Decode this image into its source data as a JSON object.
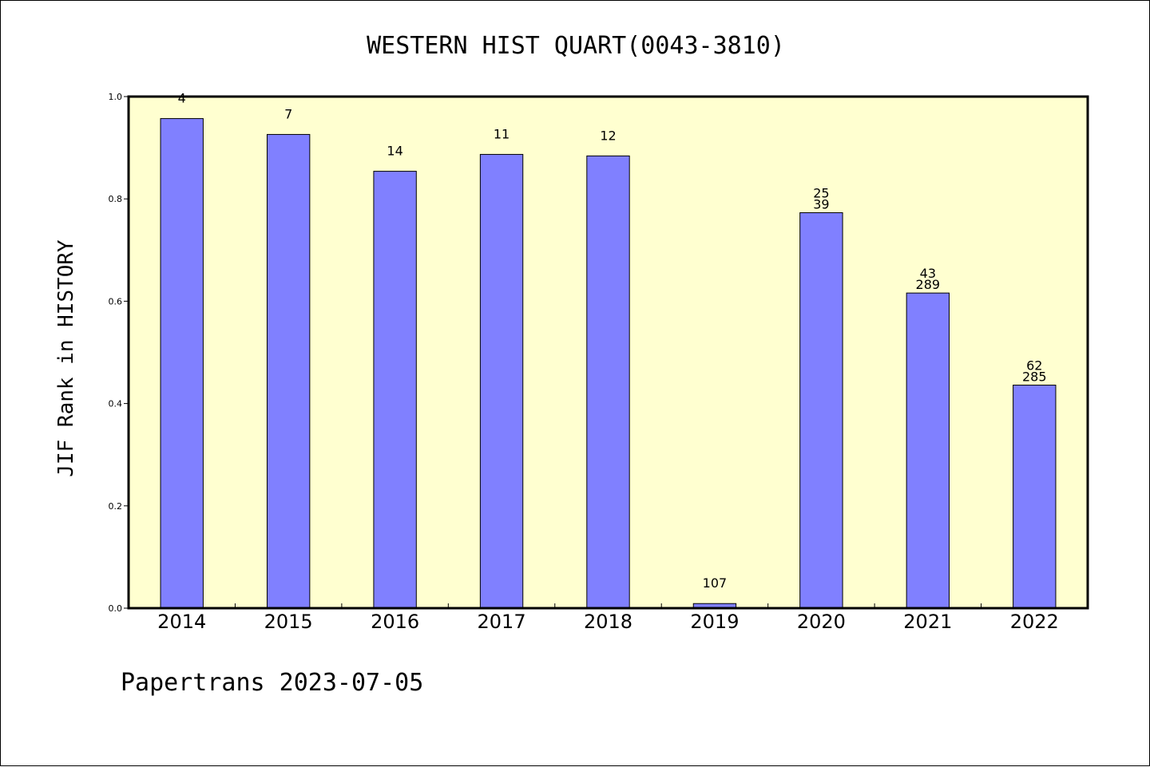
{
  "chart_data": {
    "type": "bar",
    "title": "WESTERN HIST QUART(0043-3810)",
    "ylabel": "JIF Rank in HISTORY",
    "xlabel": "",
    "ylim": [
      0,
      1.0
    ],
    "yticks": [
      "0.0",
      "0.2",
      "0.4",
      "0.6",
      "0.8",
      "1.0"
    ],
    "grid": false,
    "background_color": "#ffffd0",
    "bar_color": "#8080ff",
    "categories": [
      "2014",
      "2015",
      "2016",
      "2017",
      "2018",
      "2019",
      "2020",
      "2021",
      "2022"
    ],
    "values": [
      0.957,
      0.926,
      0.854,
      0.887,
      0.884,
      0.009,
      0.773,
      0.616,
      0.436
    ],
    "labels_top": [
      "4",
      "7",
      "14",
      "11",
      "12",
      "107",
      "25",
      "43",
      "62"
    ],
    "labels_bottom": [
      "",
      "",
      "",
      "",
      "",
      "",
      "39",
      "289",
      "285"
    ]
  },
  "footer": "Papertrans 2023-07-05"
}
